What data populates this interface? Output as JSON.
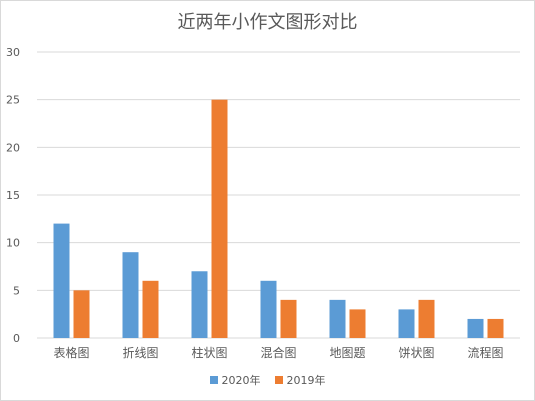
{
  "chart_data": {
    "type": "bar",
    "title": "近两年小作文图形对比",
    "categories": [
      "表格图",
      "折线图",
      "柱状图",
      "混合图",
      "地图题",
      "饼状图",
      "流程图"
    ],
    "series": [
      {
        "name": "2020年",
        "values": [
          12,
          9,
          7,
          6,
          4,
          3,
          2
        ],
        "color": "#5b9bd5"
      },
      {
        "name": "2019年",
        "values": [
          5,
          6,
          25,
          4,
          3,
          4,
          2
        ],
        "color": "#ed7d31"
      }
    ],
    "ylim": [
      0,
      30
    ],
    "yticks": [
      0,
      5,
      10,
      15,
      20,
      25,
      30
    ],
    "grid": true,
    "legend": "bottom"
  }
}
